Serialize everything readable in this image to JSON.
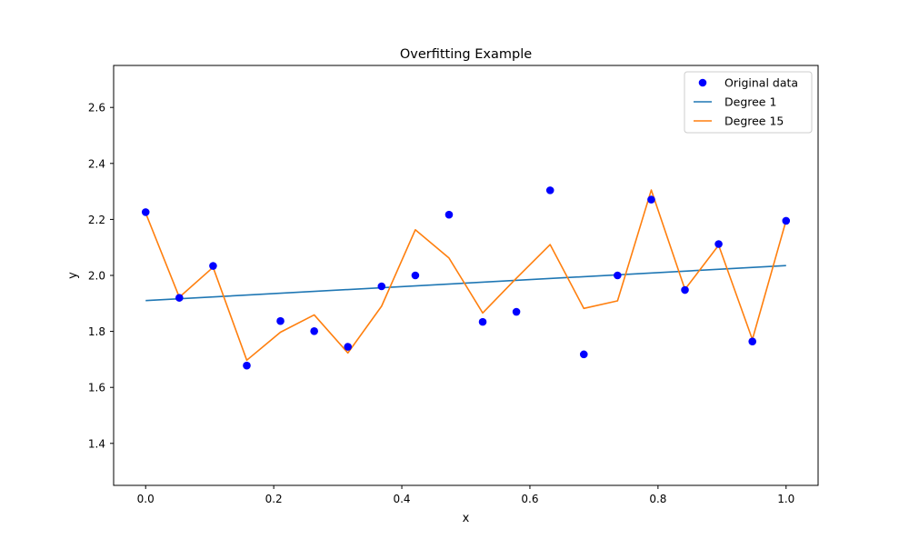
{
  "chart_data": {
    "type": "scatter",
    "title": "Overfitting Example",
    "xlabel": "x",
    "ylabel": "y",
    "xlim": [
      -0.05,
      1.05
    ],
    "ylim": [
      1.25,
      2.75
    ],
    "xticks": [
      0.0,
      0.2,
      0.4,
      0.6,
      0.8,
      1.0
    ],
    "xtick_labels": [
      "0.0",
      "0.2",
      "0.4",
      "0.6",
      "0.8",
      "1.0"
    ],
    "yticks": [
      1.4,
      1.6,
      1.8,
      2.0,
      2.2,
      2.4,
      2.6
    ],
    "ytick_labels": [
      "1.4",
      "1.6",
      "1.8",
      "2.0",
      "2.2",
      "2.4",
      "2.6"
    ],
    "grid": false,
    "legend_position": "top-right",
    "series": [
      {
        "name": "Original data",
        "kind": "scatter",
        "color": "#0000ff",
        "x": [
          0.0,
          0.0526,
          0.1053,
          0.1579,
          0.2105,
          0.2632,
          0.3158,
          0.3684,
          0.4211,
          0.4737,
          0.5263,
          0.5789,
          0.6316,
          0.6842,
          0.7368,
          0.7895,
          0.8421,
          0.8947,
          0.9474,
          1.0
        ],
        "y": [
          2.226,
          1.92,
          2.034,
          1.678,
          1.837,
          1.801,
          1.745,
          1.961,
          2.0,
          2.217,
          1.834,
          1.87,
          2.304,
          1.718,
          2.0,
          2.271,
          1.948,
          2.112,
          1.764,
          2.195
        ]
      },
      {
        "name": "Degree 1",
        "kind": "line",
        "color": "#1f77b4",
        "x": [
          0.0,
          1.0
        ],
        "y": [
          1.91,
          2.035
        ]
      },
      {
        "name": "Degree 15",
        "kind": "line",
        "color": "#ff7f0e",
        "x": [
          0.0,
          0.0526,
          0.1053,
          0.1579,
          0.2105,
          0.2632,
          0.3158,
          0.3684,
          0.4211,
          0.4737,
          0.5263,
          0.5789,
          0.6316,
          0.6842,
          0.7368,
          0.7895,
          0.8421,
          0.8947,
          0.9474,
          1.0
        ],
        "y": [
          2.223,
          1.922,
          2.029,
          1.697,
          1.797,
          1.859,
          1.723,
          1.89,
          2.163,
          2.062,
          1.866,
          1.99,
          2.11,
          1.882,
          1.909,
          2.305,
          1.95,
          2.108,
          1.771,
          2.196
        ]
      }
    ]
  }
}
